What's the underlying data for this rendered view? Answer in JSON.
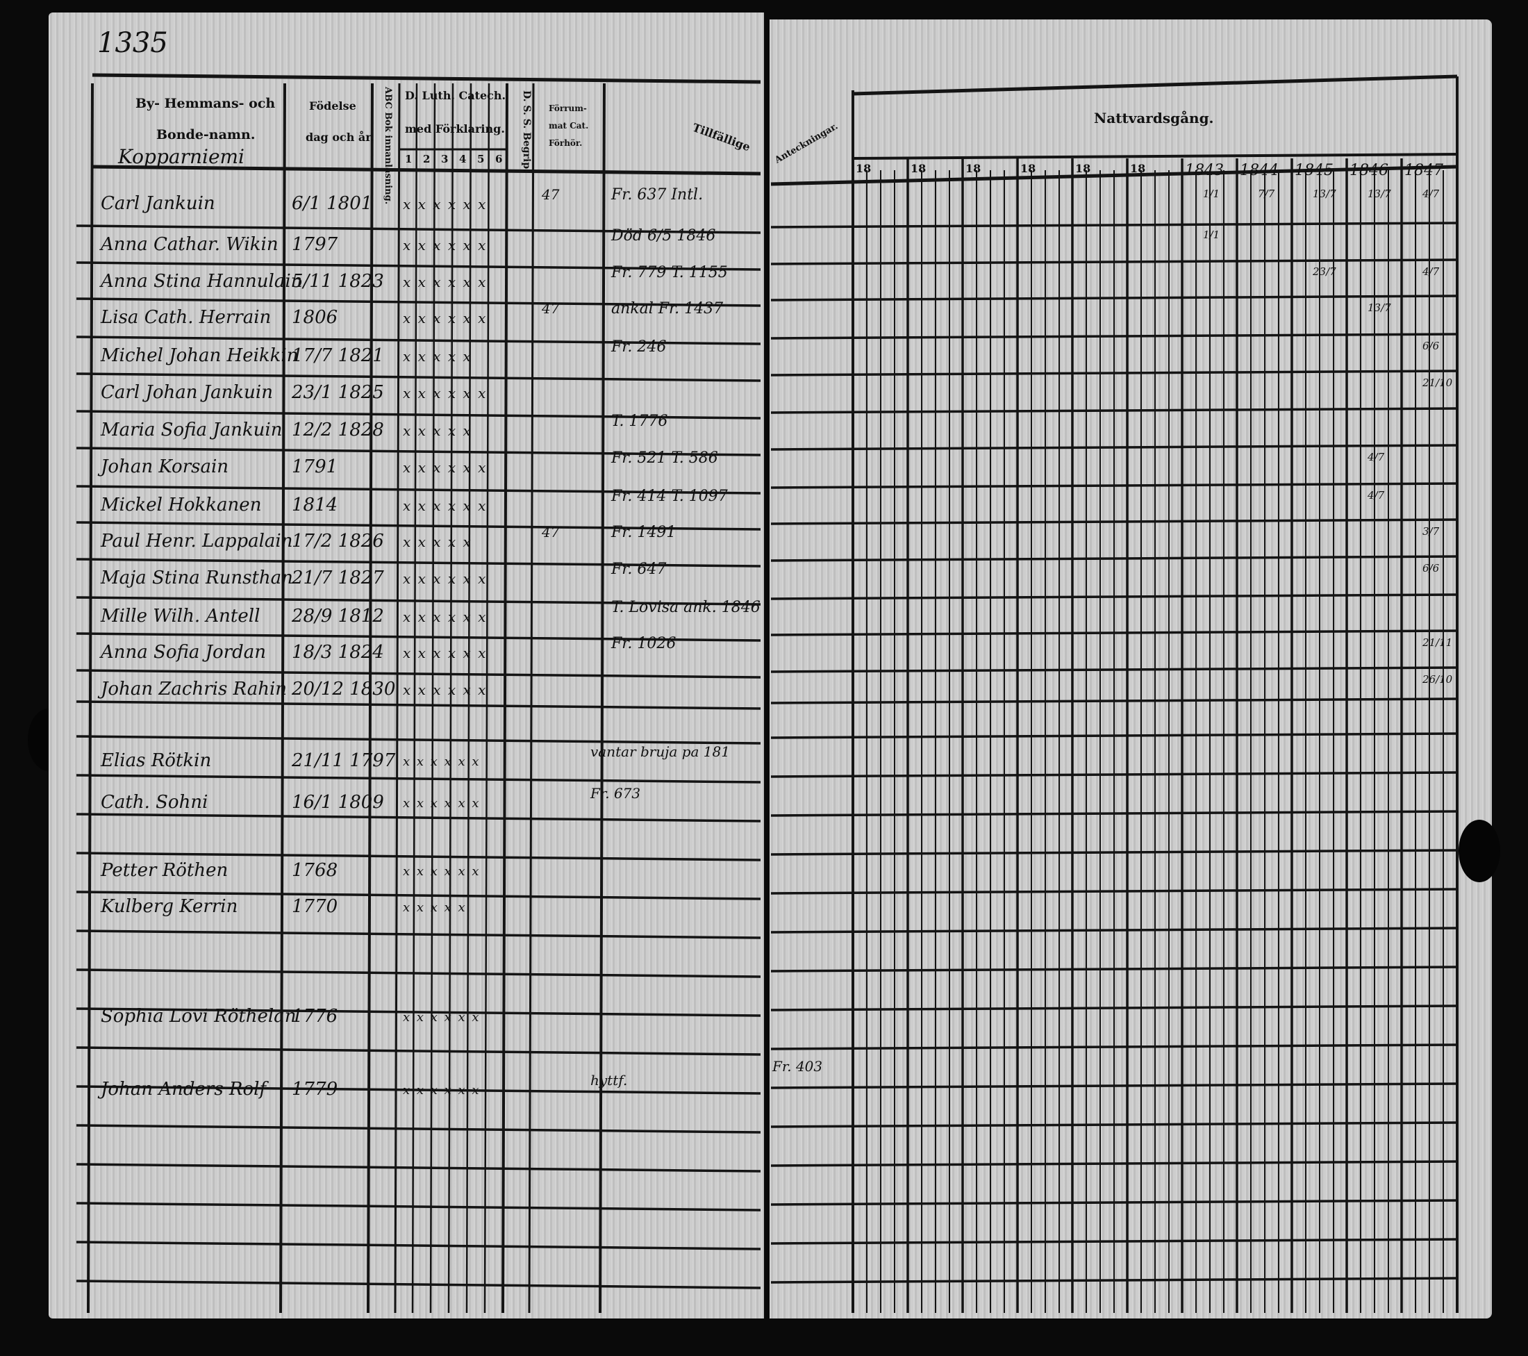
{
  "page_number": "1335",
  "left_header": {
    "name_col": [
      "By- Hemmans- och",
      "Bonde-namn."
    ],
    "village": "Kopparniemi",
    "birth_col": [
      "Födelse",
      "dag och år."
    ],
    "abc_col": "ABC Bok innanläsning.",
    "catech_col": [
      "D. Luth. Catech.",
      "med Förklaring."
    ],
    "catech_sub": [
      "1",
      "2",
      "3",
      "4",
      "5",
      "6"
    ],
    "dss_col": "D. S. S. Begrip.",
    "forrum_col": [
      "Förrum-",
      "mat Cat.",
      "Förhör."
    ],
    "tillfallig_col": "Tillfällige"
  },
  "right_header": {
    "anteckningar_col": "Anteckningar.",
    "nattvard_title": "Nattvardsgång.",
    "years": [
      "18",
      "18",
      "18",
      "18",
      "18",
      "18",
      "1843",
      "1844",
      "1845",
      "1846",
      "1847"
    ]
  },
  "rows": [
    {
      "name": "Carl Jankuin",
      "birth": "6/1 1801",
      "marks": "x x x x x x",
      "forhor": "47",
      "note": "Fr. 637 Intl.",
      "nattvard": [
        "1/1",
        "7/7",
        "13/7",
        "13/7",
        "4/7"
      ]
    },
    {
      "name": "Anna Cathar. Wikin",
      "birth": "1797",
      "marks": "x x x x x x",
      "forhor": "",
      "note": "Död 6/5 1846",
      "nattvard": [
        "1/1",
        "",
        "",
        "",
        ""
      ]
    },
    {
      "name": "Anna Stina Hannulain",
      "birth": "5/11 1823",
      "marks": "x x x x x x",
      "forhor": "",
      "note": "Fr. 779 T. 1155",
      "nattvard": [
        "",
        "",
        "23/7",
        "",
        "4/7"
      ]
    },
    {
      "name": "Lisa Cath. Herrain",
      "birth": "1806",
      "marks": "x x x x x x",
      "forhor": "47",
      "note": "ankal Fr. 1437",
      "nattvard": [
        "",
        "",
        "",
        "13/7",
        ""
      ]
    },
    {
      "name": "Michel Johan Heikkin",
      "birth": "17/7 1821",
      "marks": "x x x x x",
      "forhor": "",
      "note": "Fr. 246",
      "nattvard": [
        "",
        "",
        "",
        "",
        "6/6"
      ]
    },
    {
      "name": "Carl Johan Jankuin",
      "birth": "23/1 1825",
      "marks": "x x x x x x",
      "forhor": "",
      "note": "",
      "nattvard": [
        "",
        "",
        "",
        "",
        "21/10"
      ]
    },
    {
      "name": "Maria Sofia Jankuin",
      "birth": "12/2 1828",
      "marks": "x x x x x",
      "forhor": "",
      "note": "T. 1776",
      "nattvard": [
        "",
        "",
        "",
        "",
        ""
      ]
    },
    {
      "name": "Johan Korsain",
      "birth": "1791",
      "marks": "x x x x x x",
      "forhor": "",
      "note": "Fr. 521 T. 586",
      "nattvard": [
        "",
        "",
        "",
        "4/7",
        ""
      ]
    },
    {
      "name": "Mickel Hokkanen",
      "birth": "1814",
      "marks": "x x x x x x",
      "forhor": "",
      "note": "Fr. 414 T. 1097",
      "nattvard": [
        "",
        "",
        "",
        "4/7",
        ""
      ]
    },
    {
      "name": "Paul Henr. Lappalain",
      "birth": "17/2 1826",
      "marks": "x x x x x",
      "forhor": "47",
      "note": "Fr. 1491",
      "nattvard": [
        "",
        "",
        "",
        "",
        "3/7"
      ]
    },
    {
      "name": "Maja Stina Runsthan",
      "birth": "21/7 1827",
      "marks": "x x x x x x",
      "forhor": "",
      "note": "Fr. 647",
      "nattvard": [
        "",
        "",
        "",
        "",
        "6/6"
      ]
    },
    {
      "name": "Mille Wilh. Antell",
      "birth": "28/9 1812",
      "marks": "x x x x x x",
      "forhor": "",
      "note": "T. Lovisa ank. 1846",
      "nattvard": [
        "",
        "",
        "",
        "",
        ""
      ]
    },
    {
      "name": "Anna Sofia Jordan",
      "birth": "18/3 1824",
      "marks": "x x x x x x",
      "forhor": "",
      "note": "Fr. 1026",
      "nattvard": [
        "",
        "",
        "",
        "",
        "21/11"
      ]
    },
    {
      "name": "Johan Zachris Rahin",
      "birth": "20/12 1830",
      "marks": "x x x x x x",
      "forhor": "",
      "note": "",
      "nattvard": [
        "",
        "",
        "",
        "",
        "26/10"
      ]
    }
  ],
  "lower_rows": [
    {
      "name": "Elias Rötkin",
      "birth": "21/11 1797",
      "marks": "x x x x x x",
      "note": "vantar bruja pa 181"
    },
    {
      "name": "Cath. Sohni",
      "birth": "16/1 1809",
      "marks": "x x x x x x",
      "note": "Fr. 673"
    },
    {
      "name": "Petter Röthen",
      "birth": "1768",
      "marks": "x x x x x x",
      "note": ""
    },
    {
      "name": "Kulberg Kerrin",
      "birth": "1770",
      "marks": "x x x x x",
      "note": ""
    },
    {
      "name": "Sophia Lovi Röthelan",
      "birth": "1776",
      "marks": "x x x x x x",
      "note": ""
    },
    {
      "name": "Johan Anders Rolf",
      "birth": "1779",
      "marks": "x x x x x x",
      "note": "hyttf.",
      "anteckning": "Fr. 403"
    }
  ]
}
